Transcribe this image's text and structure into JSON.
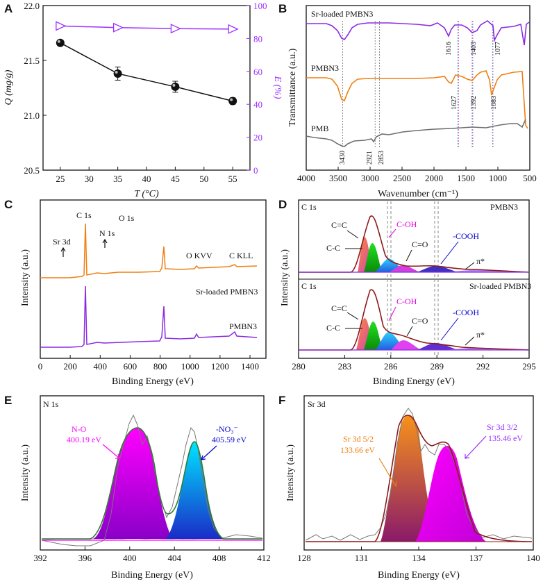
{
  "colors": {
    "axis": "#111111",
    "purple": "#8a2be2",
    "violet": "#9b30ff",
    "orange": "#f07f10",
    "gray": "#6e6e6e",
    "brown": "#8b1a1a",
    "magenta": "#e000e0",
    "cyan": "#00c8d8",
    "green": "#18c018",
    "blue": "#0000cc",
    "dashed": "#8a8a8a"
  },
  "chart_data": [
    {
      "panel": "A",
      "type": "line",
      "title": "",
      "xlabel": "T (°C)",
      "ylabel_left": "Q (mg/g)",
      "ylabel_right": "E (%)",
      "xlim": [
        22,
        58
      ],
      "ylim_left": [
        20.5,
        22.0
      ],
      "ylim_right": [
        0,
        100
      ],
      "x_ticks": [
        "25",
        "30",
        "35",
        "40",
        "45",
        "50",
        "55"
      ],
      "y_left_ticks": [
        "20.5",
        "21.0",
        "21.5",
        "22.0"
      ],
      "y_right_ticks": [
        "0",
        "20",
        "40",
        "60",
        "80",
        "100"
      ],
      "series": [
        {
          "name": "Q",
          "axis": "left",
          "x": [
            25,
            35,
            45,
            55
          ],
          "values": [
            21.66,
            21.38,
            21.26,
            21.13
          ],
          "errors": [
            0.01,
            0.06,
            0.05,
            0.03
          ]
        },
        {
          "name": "E",
          "axis": "right",
          "x": [
            25,
            35,
            45,
            55
          ],
          "values": [
            87.6,
            86.6,
            86.0,
            85.7
          ]
        }
      ]
    },
    {
      "panel": "B",
      "type": "line",
      "xlabel": "Wavenumber (cm⁻¹)",
      "ylabel": "Transmittance (a.u.)",
      "xlim": [
        4000,
        500
      ],
      "x_ticks": [
        "4000",
        "3500",
        "3000",
        "2500",
        "2000",
        "1500",
        "1000",
        "500"
      ],
      "series": [
        {
          "name": "Sr-loaded PMBN3",
          "color": "purple",
          "label": "Sr-loaded PMBN3"
        },
        {
          "name": "PMBN3",
          "color": "orange",
          "label": "PMBN3"
        },
        {
          "name": "PMB",
          "color": "gray",
          "label": "PMB"
        }
      ],
      "peaks_top": [
        "1616",
        "1403",
        "1077"
      ],
      "peaks_mid": [
        "1627",
        "1392",
        "1083"
      ],
      "peaks_bottom": [
        "3430",
        "2921",
        "2853"
      ]
    },
    {
      "panel": "C",
      "type": "line",
      "xlabel": "Binding Energy (eV)",
      "ylabel": "Intensity (a.u.)",
      "xlim": [
        0,
        1400
      ],
      "x_ticks": [
        "0",
        "200",
        "400",
        "600",
        "800",
        "1000",
        "1200",
        "1400"
      ],
      "series": [
        {
          "name": "Sr-loaded PMBN3",
          "color": "orange",
          "label": "Sr-loaded PMBN3"
        },
        {
          "name": "PMBN3",
          "color": "purple",
          "label": "PMBN3"
        }
      ],
      "annotations": [
        "C 1s",
        "Sr 3d",
        "N 1s",
        "O 1s",
        "O KVV",
        "C KLL"
      ]
    },
    {
      "panel": "D",
      "type": "line",
      "xlabel": "Binding Energy (eV)",
      "ylabel": "Intensity (a.u.)",
      "xlim": [
        280,
        295
      ],
      "x_ticks": [
        "280",
        "283",
        "286",
        "289",
        "292",
        "295"
      ],
      "subplots": [
        {
          "core": "C 1s",
          "sample": "PMBN3",
          "peaks": [
            {
              "name": "C=C",
              "center": 284.3,
              "height": 0.62
            },
            {
              "name": "C-C",
              "center": 284.8,
              "height": 0.52
            },
            {
              "name": "C-OH",
              "center": 285.9,
              "height": 0.2
            },
            {
              "name": "C=O",
              "center": 287.0,
              "height": 0.09
            },
            {
              "name": "-COOH",
              "center": 288.9,
              "height": 0.07
            },
            {
              "name": "π*",
              "center": 290.8,
              "height": 0.03
            }
          ]
        },
        {
          "core": "C 1s",
          "sample": "Sr-loaded PMBN3",
          "peaks": [
            {
              "name": "C=C",
              "center": 284.3,
              "height": 0.6
            },
            {
              "name": "C-C",
              "center": 284.8,
              "height": 0.5
            },
            {
              "name": "C-OH",
              "center": 285.8,
              "height": 0.3
            },
            {
              "name": "C=O",
              "center": 287.0,
              "height": 0.16
            },
            {
              "name": "-COOH",
              "center": 288.9,
              "height": 0.09
            },
            {
              "name": "π*",
              "center": 290.8,
              "height": 0.03
            }
          ]
        }
      ]
    },
    {
      "panel": "E",
      "type": "line",
      "title": "N 1s",
      "xlabel": "Binding Energy (eV)",
      "ylabel": "Intensity (a.u.)",
      "xlim": [
        392,
        412
      ],
      "x_ticks": [
        "392",
        "396",
        "400",
        "404",
        "408",
        "412"
      ],
      "peaks": [
        {
          "name": "N-O",
          "center": 400.19,
          "label": "400.19 eV",
          "height": 0.78
        },
        {
          "name": "-NO3-",
          "center": 405.59,
          "label": "405.59 eV",
          "height": 0.71
        }
      ]
    },
    {
      "panel": "F",
      "type": "line",
      "title": "Sr 3d",
      "xlabel": "Binding Energy (eV)",
      "ylabel": "Intensity (a.u.)",
      "xlim": [
        128,
        140
      ],
      "x_ticks": [
        "128",
        "131",
        "134",
        "137",
        "140"
      ],
      "peaks": [
        {
          "name": "Sr 3d 5/2",
          "center": 133.66,
          "label": "133.66 eV",
          "height": 0.88
        },
        {
          "name": "Sr 3d 3/2",
          "center": 135.46,
          "label": "135.46 eV",
          "height": 0.56
        }
      ]
    }
  ],
  "labels": {
    "A": "A",
    "B": "B",
    "C": "C",
    "D": "D",
    "E": "E",
    "F": "F",
    "a_xlabel": "T (°C)",
    "a_ylabel_left": "Q (mg/g)",
    "a_ylabel_right": "E (%)",
    "b_xlabel": "Wavenumber (cm⁻¹)",
    "b_ylabel": "Transmittance (a.u.)",
    "b_top": "Sr-loaded PMBN3",
    "b_mid": "PMBN3",
    "b_bot": "PMB",
    "c_xlabel": "Binding Energy (eV)",
    "c_ylabel": "Intensity (a.u.)",
    "c_c1s": "C 1s",
    "c_sr3d": "Sr 3d",
    "c_n1s": "N 1s",
    "c_o1s": "O 1s",
    "c_okvv": "O KVV",
    "c_ckll": "C KLL",
    "c_top": "Sr-loaded PMBN3",
    "c_bot": "PMBN3",
    "d_xlabel": "Binding Energy (eV)",
    "d_ylabel": "Intensity (a.u.)",
    "d_c1s": "C 1s",
    "d_top_sample": "PMBN3",
    "d_bot_sample": "Sr-loaded PMBN3",
    "d_cc": "C=C",
    "d_c_c": "C-C",
    "d_coh": "C-OH",
    "d_co": "C=O",
    "d_cooh": "-COOH",
    "d_pi": "π*",
    "e_title": "N 1s",
    "e_xlabel": "Binding Energy (eV)",
    "e_ylabel": "Intensity (a.u.)",
    "e_no": "N-O",
    "e_no_ev": "400.19 eV",
    "e_no3": "-NO₃⁻",
    "e_no3_ev": "405.59 eV",
    "f_title": "Sr 3d",
    "f_xlabel": "Binding Energy (eV)",
    "f_ylabel": "Intensity (a.u.)",
    "f_p1": "Sr 3d 5/2",
    "f_p1_ev": "133.66 eV",
    "f_p2": "Sr 3d 3/2",
    "f_p2_ev": "135.46 eV"
  }
}
